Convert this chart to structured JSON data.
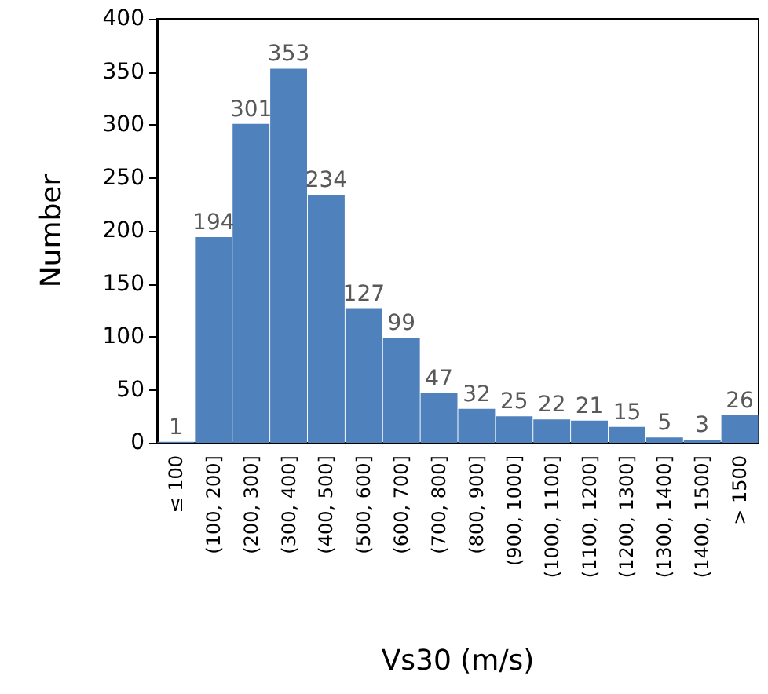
{
  "chart_data": {
    "type": "bar",
    "xlabel": "Vs30 (m/s)",
    "ylabel": "Number",
    "categories": [
      "≤ 100",
      "(100, 200]",
      "(200, 300]",
      "(300, 400]",
      "(400, 500]",
      "(500, 600]",
      "(600, 700]",
      "(700, 800]",
      "(800, 900]",
      "(900, 1000]",
      "(1000, 1100]",
      "(1100, 1200]",
      "(1200, 1300]",
      "(1300, 1400]",
      "(1400, 1500]",
      "> 1500"
    ],
    "values": [
      1,
      194,
      301,
      353,
      234,
      127,
      99,
      47,
      32,
      25,
      22,
      21,
      15,
      5,
      3,
      26
    ],
    "color": "#4f81bd",
    "ylim": [
      0,
      400
    ],
    "yticks": [
      0,
      50,
      100,
      150,
      200,
      250,
      300,
      350,
      400
    ],
    "grid": false,
    "data_labels": true
  }
}
